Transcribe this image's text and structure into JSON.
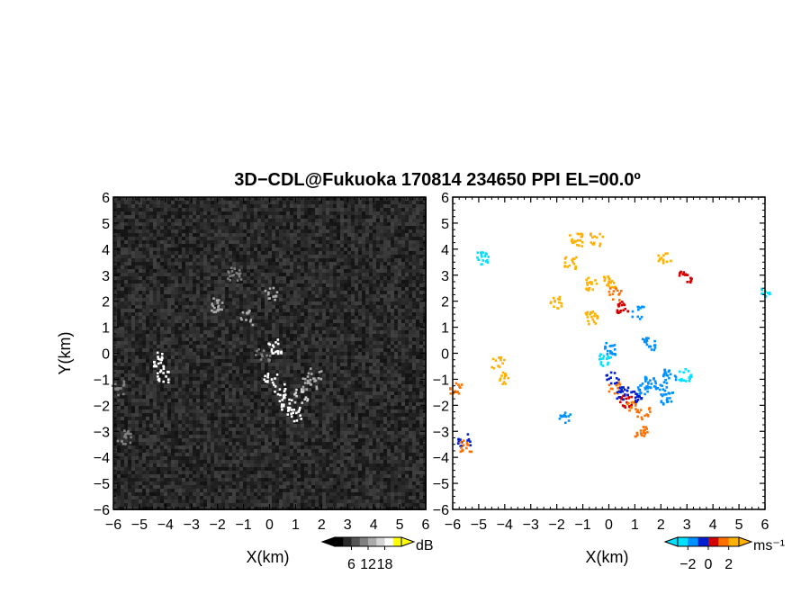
{
  "figure": {
    "title": "3D−CDL@Fukuoka 170814 234650 PPI EL=00.0º"
  },
  "chart_data": [
    {
      "type": "heatmap",
      "panel": "left",
      "quantity_unit": "dB",
      "xlabel": "X(km)",
      "ylabel": "Y(km)",
      "xlim": [
        -6,
        6
      ],
      "ylim": [
        -6,
        6
      ],
      "x_ticks": [
        "−6",
        "−5",
        "−4",
        "−3",
        "−2",
        "−1",
        "0",
        "1",
        "2",
        "3",
        "4",
        "5",
        "6"
      ],
      "y_ticks": [
        "6",
        "5",
        "4",
        "3",
        "2",
        "1",
        "0",
        "−1",
        "−2",
        "−3",
        "−4",
        "−5",
        "−6"
      ],
      "background": "noise field, dark gray",
      "colorbar": {
        "unit": "dB",
        "tick_labels": [
          "6",
          "12",
          "18"
        ],
        "tick_values": [
          6,
          12,
          18
        ],
        "range": [
          0,
          24
        ],
        "colors": [
          "#000000",
          "#2a2a2a",
          "#555555",
          "#808080",
          "#aaaaaa",
          "#d4d4d4",
          "#ffffff",
          "#ffff00"
        ],
        "extend": "both"
      },
      "features": [
        {
          "x": -4.3,
          "y": -0.2,
          "value": 18
        },
        {
          "x": -4.1,
          "y": -0.8,
          "value": 18
        },
        {
          "x": 0.2,
          "y": 0.3,
          "value": 18
        },
        {
          "x": 0.0,
          "y": -0.9,
          "value": 18
        },
        {
          "x": 0.3,
          "y": -1.4,
          "value": 18
        },
        {
          "x": 0.6,
          "y": -1.9,
          "value": 18
        },
        {
          "x": 0.9,
          "y": -2.3,
          "value": 18
        },
        {
          "x": 1.2,
          "y": -1.6,
          "value": 16
        },
        {
          "x": 1.5,
          "y": -1.2,
          "value": 14
        },
        {
          "x": 1.7,
          "y": -0.8,
          "value": 12
        },
        {
          "x": -0.3,
          "y": 0.0,
          "value": 10
        },
        {
          "x": -0.9,
          "y": 1.4,
          "value": 12
        },
        {
          "x": -2.0,
          "y": 1.9,
          "value": 14
        },
        {
          "x": 0.0,
          "y": 2.3,
          "value": 12
        },
        {
          "x": -1.4,
          "y": 3.1,
          "value": 10
        },
        {
          "x": -5.9,
          "y": -1.3,
          "value": 10
        },
        {
          "x": -5.6,
          "y": -3.2,
          "value": 10
        }
      ]
    },
    {
      "type": "heatmap",
      "panel": "right",
      "quantity_unit": "ms⁻¹",
      "xlabel": "X(km)",
      "ylabel": "",
      "xlim": [
        -6,
        6
      ],
      "ylim": [
        -6,
        6
      ],
      "x_ticks": [
        "−6",
        "−5",
        "−4",
        "−3",
        "−2",
        "−1",
        "0",
        "1",
        "2",
        "3",
        "4",
        "5",
        "6"
      ],
      "y_ticks": [
        "6",
        "5",
        "4",
        "3",
        "2",
        "1",
        "0",
        "−1",
        "−2",
        "−3",
        "−4",
        "−5",
        "−6"
      ],
      "background": "white (no data)",
      "colorbar": {
        "unit": "ms⁻¹",
        "tick_labels": [
          "−2",
          "0",
          "2"
        ],
        "tick_values": [
          -2,
          0,
          2
        ],
        "range": [
          -3,
          3
        ],
        "colors": [
          "#00e0ff",
          "#0090ff",
          "#0020d0",
          "#d00000",
          "#ff7000",
          "#ffb000"
        ],
        "extend": "both"
      },
      "features": [
        {
          "x": -4.3,
          "y": -0.3,
          "value": 2.5
        },
        {
          "x": -4.1,
          "y": -0.9,
          "value": 2.5
        },
        {
          "x": -4.9,
          "y": 3.7,
          "value": -2.5
        },
        {
          "x": -1.5,
          "y": 3.5,
          "value": 2.5
        },
        {
          "x": -2.1,
          "y": 2.0,
          "value": 2.5
        },
        {
          "x": -1.3,
          "y": 4.4,
          "value": 2.5
        },
        {
          "x": -0.5,
          "y": 4.4,
          "value": 2.5
        },
        {
          "x": -0.7,
          "y": 2.7,
          "value": 2.5
        },
        {
          "x": 0.0,
          "y": 2.8,
          "value": 2.5
        },
        {
          "x": 0.2,
          "y": 2.3,
          "value": 1.0
        },
        {
          "x": -0.7,
          "y": 1.4,
          "value": 2.5
        },
        {
          "x": 0.5,
          "y": 1.8,
          "value": 0.5
        },
        {
          "x": 1.1,
          "y": 1.6,
          "value": -2.0
        },
        {
          "x": 2.1,
          "y": 3.7,
          "value": 2.5
        },
        {
          "x": 2.9,
          "y": 3.0,
          "value": 0.5
        },
        {
          "x": 1.5,
          "y": 0.4,
          "value": -2.0
        },
        {
          "x": -0.2,
          "y": -0.2,
          "value": -3.0
        },
        {
          "x": 0.0,
          "y": 0.2,
          "value": -1.5
        },
        {
          "x": -1.7,
          "y": -2.4,
          "value": -1.5
        },
        {
          "x": -5.9,
          "y": -1.3,
          "value": 1.0
        },
        {
          "x": -5.6,
          "y": -3.3,
          "value": -1.0
        },
        {
          "x": -5.5,
          "y": -3.5,
          "value": 1.0
        },
        {
          "x": 0.2,
          "y": -1.3,
          "value": 1.0
        },
        {
          "x": 0.6,
          "y": -1.8,
          "value": 0.8
        },
        {
          "x": 0.9,
          "y": -2.0,
          "value": 1.0
        },
        {
          "x": 1.3,
          "y": -2.3,
          "value": 1.0
        },
        {
          "x": 1.2,
          "y": -3.0,
          "value": 1.0
        },
        {
          "x": 0.1,
          "y": -0.9,
          "value": -1.0
        },
        {
          "x": 0.5,
          "y": -1.5,
          "value": -1.0
        },
        {
          "x": 1.0,
          "y": -1.6,
          "value": -1.0
        },
        {
          "x": 1.3,
          "y": -1.3,
          "value": -1.5
        },
        {
          "x": 1.6,
          "y": -1.1,
          "value": -1.5
        },
        {
          "x": 2.0,
          "y": -1.3,
          "value": -2.0
        },
        {
          "x": 2.2,
          "y": -1.7,
          "value": -2.0
        },
        {
          "x": 2.3,
          "y": -0.8,
          "value": -2.0
        },
        {
          "x": 2.9,
          "y": -0.8,
          "value": -2.5
        },
        {
          "x": 6.0,
          "y": 2.4,
          "value": -2.5
        }
      ]
    }
  ]
}
